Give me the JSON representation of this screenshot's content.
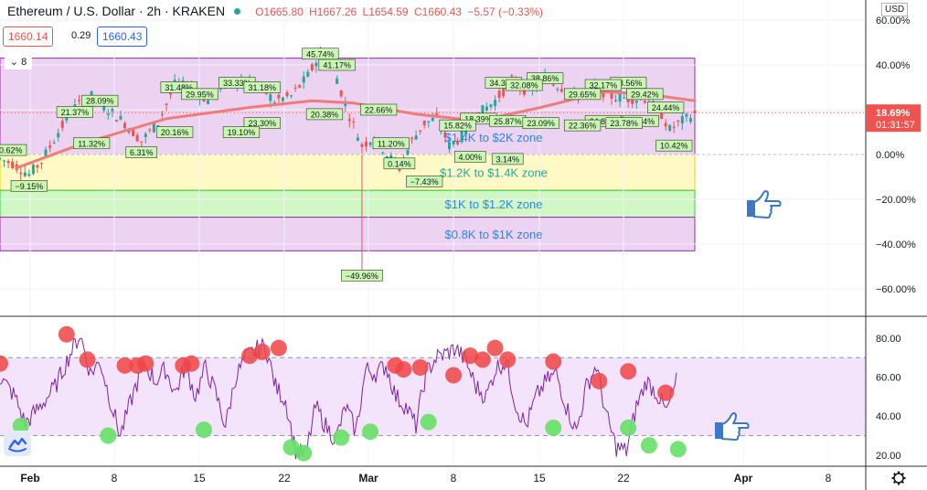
{
  "header": {
    "title": "Ethereum / U.S. Dollar · 2h · KRAKEN",
    "ohlc": [
      "O1665.80",
      "H1667.26",
      "L1654.59",
      "C1660.43",
      "−5.57 (−0.33%)"
    ]
  },
  "trade": {
    "bid": "1660.14",
    "spread": "0.29",
    "ask": "1660.43"
  },
  "layers_count": "8",
  "currency": "USD",
  "price_label": {
    "pct": "18.69%",
    "timer": "01:31:57"
  },
  "colors": {
    "candle_up": "#26a69a",
    "candle_down": "#ef5350",
    "ma": "#ef7c7a",
    "rsi_line": "#7e22a8",
    "zone_purple": "#e6c8ee",
    "zone_yellow": "#fff7b8",
    "zone_green": "#c5f5b5",
    "marker_red": "#ef4444",
    "marker_green": "#66e066"
  },
  "chart_data": [
    {
      "type": "candlestick",
      "title": "Ethereum / U.S. Dollar",
      "y_scale": "percent",
      "yticks": [
        "60.00%",
        "40.00%",
        "20.00%",
        "0.00%",
        "−20.00%",
        "−40.00%",
        "−60.00%"
      ],
      "ylim": [
        -70,
        62
      ],
      "x_ticks": [
        "Feb",
        "8",
        "15",
        "22",
        "Mar",
        "8",
        "15",
        "22",
        "Apr",
        "8"
      ],
      "last_value": 18.69,
      "path": [
        [
          0,
          -2
        ],
        [
          3,
          -4
        ],
        [
          7,
          -9
        ],
        [
          10,
          -3
        ],
        [
          14,
          10
        ],
        [
          18,
          21
        ],
        [
          22,
          26
        ],
        [
          26,
          20
        ],
        [
          30,
          14
        ],
        [
          34,
          6
        ],
        [
          38,
          14
        ],
        [
          42,
          31
        ],
        [
          46,
          30
        ],
        [
          50,
          24
        ],
        [
          54,
          32
        ],
        [
          58,
          33
        ],
        [
          62,
          31
        ],
        [
          66,
          24
        ],
        [
          70,
          26
        ],
        [
          74,
          35
        ],
        [
          77,
          45
        ],
        [
          80,
          40
        ],
        [
          83,
          22
        ],
        [
          87,
          4
        ],
        [
          90,
          8
        ],
        [
          93,
          0
        ],
        [
          96,
          -6
        ],
        [
          99,
          6
        ],
        [
          102,
          14
        ],
        [
          105,
          16
        ],
        [
          108,
          4
        ],
        [
          111,
          8
        ],
        [
          115,
          18
        ],
        [
          119,
          24
        ],
        [
          123,
          33
        ],
        [
          127,
          28
        ],
        [
          131,
          34
        ],
        [
          135,
          30
        ],
        [
          139,
          26
        ],
        [
          143,
          30
        ],
        [
          147,
          26
        ],
        [
          151,
          25
        ],
        [
          155,
          25
        ],
        [
          159,
          18
        ],
        [
          161,
          11
        ],
        [
          164,
          15
        ],
        [
          167,
          18
        ]
      ],
      "ma_path": [
        [
          4,
          -6
        ],
        [
          20,
          5
        ],
        [
          40,
          16
        ],
        [
          60,
          21
        ],
        [
          75,
          24
        ],
        [
          85,
          23
        ],
        [
          100,
          18
        ],
        [
          115,
          15
        ],
        [
          130,
          21
        ],
        [
          145,
          28
        ],
        [
          155,
          27
        ],
        [
          167,
          24
        ]
      ],
      "zones": [
        {
          "label": "$1.4K to $2K zone",
          "from": 0,
          "to": 43,
          "color": "purple"
        },
        {
          "label": "$1.2K to $1.4K zone",
          "from": -16,
          "to": 0,
          "color": "yellow"
        },
        {
          "label": "$1K to $1.2K zone",
          "from": -28,
          "to": -16,
          "color": "green"
        },
        {
          "label": "$0.8K to $1K zone",
          "from": -43,
          "to": -28,
          "color": "purple"
        }
      ],
      "annotations": [
        {
          "text": "45.74%",
          "x": 77,
          "y": 45
        },
        {
          "text": "41.17%",
          "x": 81,
          "y": 40
        },
        {
          "text": "38.86%",
          "x": 131,
          "y": 34
        },
        {
          "text": "34.34%",
          "x": 121,
          "y": 32
        },
        {
          "text": "33.56%",
          "x": 151,
          "y": 32
        },
        {
          "text": "32.08%",
          "x": 126,
          "y": 31
        },
        {
          "text": "32.17%",
          "x": 145,
          "y": 31
        },
        {
          "text": "33.33%",
          "x": 57,
          "y": 32
        },
        {
          "text": "31.18%",
          "x": 63,
          "y": 30
        },
        {
          "text": "31.48%",
          "x": 43,
          "y": 30
        },
        {
          "text": "29.95%",
          "x": 48,
          "y": 27
        },
        {
          "text": "29.65%",
          "x": 140,
          "y": 27
        },
        {
          "text": "29.42%",
          "x": 155,
          "y": 27
        },
        {
          "text": "28.09%",
          "x": 24,
          "y": 24
        },
        {
          "text": "24.44%",
          "x": 160,
          "y": 21
        },
        {
          "text": "22.66%",
          "x": 91,
          "y": 20
        },
        {
          "text": "21.37%",
          "x": 18,
          "y": 19
        },
        {
          "text": "20.38%",
          "x": 78,
          "y": 18
        },
        {
          "text": "18.39%",
          "x": 115,
          "y": 16
        },
        {
          "text": "15.82%",
          "x": 110,
          "y": 13
        },
        {
          "text": "25.87%",
          "x": 122,
          "y": 15
        },
        {
          "text": "23.09%",
          "x": 130,
          "y": 14
        },
        {
          "text": "24.85%",
          "x": 145,
          "y": 15
        },
        {
          "text": "24.94%",
          "x": 154,
          "y": 15
        },
        {
          "text": "23.78%",
          "x": 150,
          "y": 14
        },
        {
          "text": "22.36%",
          "x": 140,
          "y": 13
        },
        {
          "text": "23.30%",
          "x": 63,
          "y": 14
        },
        {
          "text": "20.16%",
          "x": 42,
          "y": 10
        },
        {
          "text": "19.10%",
          "x": 58,
          "y": 10
        },
        {
          "text": "11.32%",
          "x": 22,
          "y": 5
        },
        {
          "text": "11.20%",
          "x": 94,
          "y": 5
        },
        {
          "text": "10.42%",
          "x": 162,
          "y": 4
        },
        {
          "text": "6.31%",
          "x": 34,
          "y": 1
        },
        {
          "text": "4.00%",
          "x": 113,
          "y": -1
        },
        {
          "text": "3.14%",
          "x": 122,
          "y": -2
        },
        {
          "text": "0.14%",
          "x": 96,
          "y": -4
        },
        {
          "text": "−0.62%",
          "x": 2,
          "y": 2
        },
        {
          "text": "−7.43%",
          "x": 102,
          "y": -12
        },
        {
          "text": "−9.15%",
          "x": 7,
          "y": -14
        },
        {
          "text": "−49.96%",
          "x": 87,
          "y": -54
        }
      ]
    },
    {
      "type": "line",
      "title": "",
      "yticks": [
        "80.00",
        "60.00",
        "40.00",
        "20.00"
      ],
      "ylim": [
        15,
        95
      ],
      "bands": [
        30,
        70
      ],
      "path": [
        [
          0,
          60
        ],
        [
          3,
          50
        ],
        [
          5,
          36
        ],
        [
          8,
          45
        ],
        [
          11,
          55
        ],
        [
          14,
          72
        ],
        [
          16,
          82
        ],
        [
          18,
          62
        ],
        [
          20,
          68
        ],
        [
          22,
          48
        ],
        [
          24,
          30
        ],
        [
          27,
          55
        ],
        [
          29,
          66
        ],
        [
          31,
          58
        ],
        [
          33,
          64
        ],
        [
          35,
          52
        ],
        [
          37,
          66
        ],
        [
          39,
          50
        ],
        [
          41,
          65
        ],
        [
          43,
          52
        ],
        [
          45,
          35
        ],
        [
          47,
          60
        ],
        [
          49,
          70
        ],
        [
          51,
          74
        ],
        [
          53,
          76
        ],
        [
          55,
          55
        ],
        [
          57,
          48
        ],
        [
          59,
          22
        ],
        [
          61,
          20
        ],
        [
          63,
          45
        ],
        [
          65,
          35
        ],
        [
          67,
          28
        ],
        [
          69,
          45
        ],
        [
          71,
          32
        ],
        [
          73,
          64
        ],
        [
          75,
          62
        ],
        [
          77,
          66
        ],
        [
          79,
          50
        ],
        [
          81,
          45
        ],
        [
          83,
          35
        ],
        [
          85,
          62
        ],
        [
          87,
          70
        ],
        [
          89,
          72
        ],
        [
          91,
          75
        ],
        [
          93,
          68
        ],
        [
          95,
          55
        ],
        [
          97,
          50
        ],
        [
          99,
          65
        ],
        [
          101,
          68
        ],
        [
          103,
          45
        ],
        [
          105,
          35
        ],
        [
          107,
          50
        ],
        [
          109,
          58
        ],
        [
          111,
          62
        ],
        [
          113,
          45
        ],
        [
          115,
          32
        ],
        [
          117,
          55
        ],
        [
          119,
          66
        ],
        [
          121,
          40
        ],
        [
          123,
          24
        ],
        [
          125,
          22
        ],
        [
          127,
          45
        ],
        [
          129,
          58
        ],
        [
          131,
          52
        ],
        [
          133,
          42
        ],
        [
          135,
          58
        ]
      ],
      "markers_red": [
        [
          0,
          67
        ],
        [
          16,
          82
        ],
        [
          21,
          69
        ],
        [
          30,
          66
        ],
        [
          33,
          66
        ],
        [
          35,
          67
        ],
        [
          44,
          66
        ],
        [
          46,
          67
        ],
        [
          60,
          71
        ],
        [
          63,
          73
        ],
        [
          67,
          75
        ],
        [
          95,
          66
        ],
        [
          97,
          64
        ],
        [
          101,
          65
        ],
        [
          109,
          61
        ],
        [
          113,
          71
        ],
        [
          116,
          69
        ],
        [
          119,
          75
        ],
        [
          122,
          69
        ],
        [
          133,
          68
        ],
        [
          144,
          58
        ],
        [
          151,
          63
        ],
        [
          160,
          52
        ]
      ],
      "markers_green": [
        [
          5,
          35
        ],
        [
          26,
          30
        ],
        [
          49,
          33
        ],
        [
          70,
          24
        ],
        [
          73,
          21
        ],
        [
          82,
          29
        ],
        [
          89,
          32
        ],
        [
          103,
          37
        ],
        [
          133,
          34
        ],
        [
          151,
          34
        ],
        [
          156,
          25
        ],
        [
          163,
          23
        ]
      ]
    }
  ]
}
